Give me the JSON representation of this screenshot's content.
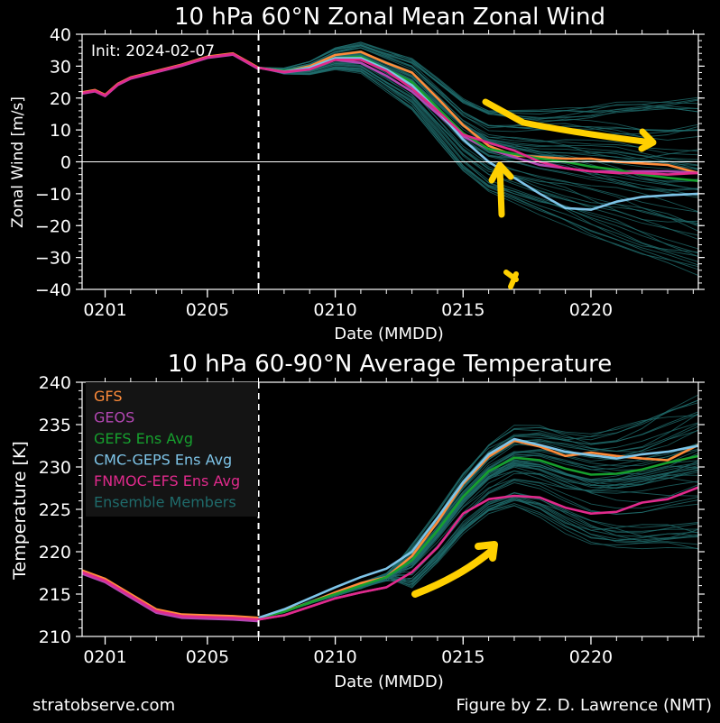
{
  "footer": {
    "left": "stratobserve.com",
    "right": "Figure by Z. D. Lawrence (NMT)"
  },
  "colors": {
    "gfs": "#ff8c3a",
    "geos": "#b347b3",
    "gefs": "#16a02e",
    "cmc": "#7ec4e8",
    "fnmoc": "#e02a8c",
    "ens": "#1f6b6b",
    "annotation": "#ffd000"
  },
  "chart_data": [
    {
      "type": "line",
      "title": "10 hPa  60°N   Zonal Mean Zonal Wind",
      "xlabel": "Date (MMDD)",
      "ylabel": "Zonal  Wind   [m/s]",
      "init_label": "Init: 2024-02-07",
      "xlim": [
        -0.9,
        23.2
      ],
      "ylim": [
        -40,
        40
      ],
      "yticks": [
        40,
        30,
        20,
        10,
        0,
        -10,
        -20,
        -30,
        -40
      ],
      "ytick_labels": [
        "40",
        "30",
        "20",
        "10",
        "0",
        "−10",
        "−20",
        "−30",
        "−40"
      ],
      "xticks": [
        0,
        4,
        9,
        14,
        19
      ],
      "xtick_labels": [
        "0201",
        "0205",
        "0210",
        "0215",
        "0220"
      ],
      "init_day": 6,
      "zero_line": 0,
      "history": {
        "x": [
          -0.9,
          -0.4,
          0,
          0.5,
          1,
          2,
          3,
          4,
          5,
          6
        ],
        "values": [
          21.8,
          22.5,
          21,
          24.5,
          26.5,
          28.5,
          30.5,
          33,
          34,
          29.5
        ]
      },
      "series": [
        {
          "name": "GFS",
          "color_key": "gfs",
          "x": [
            6,
            7,
            8,
            9,
            10,
            11,
            12,
            13,
            14,
            15,
            16,
            17,
            18,
            19,
            20,
            21,
            22,
            23.2
          ],
          "values": [
            29.5,
            28.3,
            30,
            33.5,
            34.5,
            31,
            28,
            20,
            11.5,
            5,
            2,
            1.5,
            1,
            1,
            0,
            -0.5,
            -1,
            -3.5
          ]
        },
        {
          "name": "GEOS",
          "color_key": "geos",
          "x": [
            6,
            7,
            8,
            9,
            10,
            11,
            12,
            13,
            14,
            15,
            16,
            17,
            18,
            19,
            20,
            21,
            22,
            23.2
          ],
          "values": [
            29.5,
            28,
            29,
            32,
            31,
            27,
            22,
            15,
            8,
            4,
            1.5,
            -1,
            -2,
            -3,
            -3,
            -3,
            -3,
            -3.5
          ]
        },
        {
          "name": "GEFS Ens Avg",
          "color_key": "gefs",
          "x": [
            6,
            7,
            8,
            9,
            10,
            11,
            12,
            13,
            14,
            15,
            16,
            17,
            18,
            19,
            20,
            21,
            22,
            23.2
          ],
          "values": [
            29.5,
            28.5,
            29.5,
            32.5,
            33,
            29,
            25,
            17,
            9,
            4,
            2.5,
            1,
            0,
            -1.5,
            -2.5,
            -4,
            -5,
            -6
          ]
        },
        {
          "name": "CMC-GEPS Ens Avg",
          "color_key": "cmc",
          "x": [
            6,
            7,
            8,
            9,
            10,
            11,
            12,
            13,
            14,
            15,
            16,
            17,
            18,
            19,
            20,
            21,
            22,
            23.2
          ],
          "values": [
            29.5,
            28.3,
            29.5,
            32.5,
            32.5,
            29,
            24,
            16,
            7,
            0,
            -5,
            -10,
            -14.5,
            -15,
            -12.5,
            -11,
            -10.5,
            -10
          ]
        },
        {
          "name": "FNMOC-EFS Ens Avg",
          "color_key": "fnmoc",
          "x": [
            6,
            7,
            8,
            9,
            10,
            11,
            12,
            13,
            14,
            15,
            16,
            17,
            18,
            19,
            20,
            21,
            22,
            23.2
          ],
          "values": [
            29.5,
            28.2,
            29,
            32,
            32,
            28.5,
            23,
            16,
            8.5,
            6,
            3.5,
            0,
            -2,
            -3,
            -3.5,
            -3.5,
            -4,
            -3.5
          ]
        }
      ],
      "ensemble": {
        "start": 6,
        "end_min": -36,
        "end_max": 23,
        "count": 52
      },
      "annotations": [
        "yellow arrow pointing to reversal",
        "yellow arrow along trend",
        "small yellow mark"
      ]
    },
    {
      "type": "line",
      "title": "10 hPa  60-90°N Average Temperature",
      "xlabel": "Date (MMDD)",
      "ylabel": "Temperature  [K]",
      "xlim": [
        -0.9,
        23.2
      ],
      "ylim": [
        210,
        240
      ],
      "yticks": [
        240,
        235,
        230,
        225,
        220,
        215,
        210
      ],
      "ytick_labels": [
        "240",
        "235",
        "230",
        "225",
        "220",
        "215",
        "210"
      ],
      "xticks": [
        0,
        4,
        9,
        14,
        19
      ],
      "xtick_labels": [
        "0201",
        "0205",
        "0210",
        "0215",
        "0220"
      ],
      "init_day": 6,
      "history": {
        "x": [
          -0.9,
          0,
          1,
          2,
          3,
          4,
          5,
          6
        ],
        "values": [
          217.8,
          216.8,
          215,
          213.2,
          212.6,
          212.5,
          212.4,
          212.2
        ]
      },
      "series": [
        {
          "name": "GFS",
          "color_key": "gfs",
          "x": [
            6,
            7,
            8,
            9,
            10,
            11,
            12,
            13,
            14,
            15,
            16,
            17,
            18,
            19,
            20,
            21,
            22,
            23.2
          ],
          "values": [
            212.2,
            213,
            214,
            215.2,
            216.3,
            217,
            219.5,
            223.5,
            228,
            231.2,
            233.1,
            232.4,
            231.3,
            231.7,
            231.3,
            231,
            230.8,
            232.6
          ]
        },
        {
          "name": "GEOS",
          "color_key": "geos",
          "x": [
            6,
            7,
            8,
            9,
            10,
            11
          ],
          "values": [
            212.0,
            212.5,
            213.5,
            214.5,
            215.2,
            215.8
          ]
        },
        {
          "name": "GEFS Ens Avg",
          "color_key": "gefs",
          "x": [
            6,
            7,
            8,
            9,
            10,
            11,
            12,
            13,
            14,
            15,
            16,
            17,
            18,
            19,
            20,
            21,
            22,
            23.2
          ],
          "values": [
            212.2,
            212.9,
            214,
            215,
            216,
            217,
            219,
            222.5,
            226.5,
            229.5,
            231.1,
            230.8,
            229.8,
            229.1,
            229.2,
            229.7,
            230.5,
            231.3
          ]
        },
        {
          "name": "CMC-GEPS Ens Avg",
          "color_key": "cmc",
          "x": [
            6,
            7,
            8,
            9,
            10,
            11,
            12,
            13,
            14,
            15,
            16,
            17,
            18,
            19,
            20,
            21,
            22,
            23.2
          ],
          "values": [
            212.2,
            213.2,
            214.5,
            215.8,
            217,
            218,
            220,
            224,
            228.2,
            231.5,
            233.3,
            232.6,
            231.8,
            231.4,
            231,
            231.5,
            231.8,
            232.5
          ]
        },
        {
          "name": "FNMOC-EFS Ens Avg",
          "color_key": "fnmoc",
          "x": [
            6,
            7,
            8,
            9,
            10,
            11,
            12,
            13,
            14,
            15,
            16,
            17,
            18,
            19,
            20,
            21,
            22,
            23.2
          ],
          "values": [
            212.0,
            212.5,
            213.5,
            214.5,
            215.2,
            215.8,
            217.6,
            220.5,
            224.5,
            226.2,
            226.6,
            226.4,
            225.2,
            224.5,
            224.7,
            225.8,
            226.2,
            227.6
          ]
        }
      ],
      "ensemble": {
        "start": 6,
        "end_min": 220,
        "end_max": 238,
        "count": 52
      },
      "legend": {
        "placement": "top-left",
        "entries": [
          {
            "label": "GFS",
            "color_key": "gfs"
          },
          {
            "label": "GEOS",
            "color_key": "geos"
          },
          {
            "label": "GEFS Ens Avg",
            "color_key": "gefs"
          },
          {
            "label": "CMC-GEPS Ens Avg",
            "color_key": "cmc"
          },
          {
            "label": "FNMOC-EFS Ens Avg",
            "color_key": "fnmoc"
          },
          {
            "label": "Ensemble Members",
            "color_key": "ens"
          }
        ]
      },
      "annotations": [
        "yellow arrow pointing up-right along warming"
      ]
    }
  ]
}
